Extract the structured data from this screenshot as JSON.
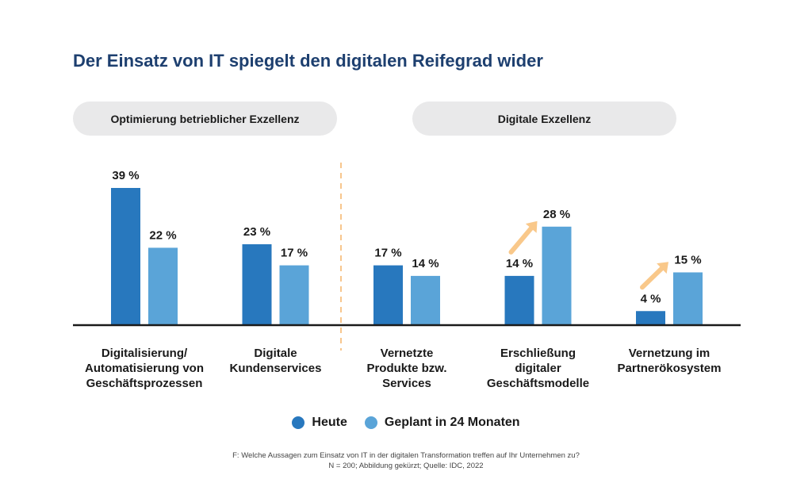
{
  "chart_data": {
    "type": "bar",
    "title": "Der Einsatz von IT spiegelt den digitalen Reifegrad wider",
    "groups": [
      {
        "label": "Optimierung betrieblicher Exzellenz",
        "categories": [
          0,
          1
        ]
      },
      {
        "label": "Digitale Exzellenz",
        "categories": [
          2,
          3,
          4
        ]
      }
    ],
    "categories": [
      [
        "Digitalisierung/",
        "Automatisierung von",
        "Geschäftsprozessen"
      ],
      [
        "Digitale",
        "Kundenservices"
      ],
      [
        "Vernetzte",
        "Produkte bzw.",
        "Services"
      ],
      [
        "Erschließung",
        "digitaler",
        "Geschäftsmodelle"
      ],
      [
        "Vernetzung im",
        "Partnerökosystem"
      ]
    ],
    "series": [
      {
        "name": "Heute",
        "color": "#2878be",
        "values": [
          39,
          23,
          17,
          14,
          4
        ]
      },
      {
        "name": "Geplant in 24 Monaten",
        "color": "#5aa4d8",
        "values": [
          22,
          17,
          14,
          28,
          15
        ]
      }
    ],
    "value_suffix": " %",
    "growth_arrows_on_categories": [
      3,
      4
    ],
    "arrow_color": "#f9c88a",
    "ylim": [
      0,
      40
    ],
    "grid": false,
    "legend_position": "bottom",
    "footnote": [
      "F: Welche Aussagen zum Einsatz von IT in der digitalen Transformation treffen auf Ihr Unternehmen zu?",
      "N = 200; Abbildung gekürzt; Quelle: IDC, 2022"
    ]
  }
}
